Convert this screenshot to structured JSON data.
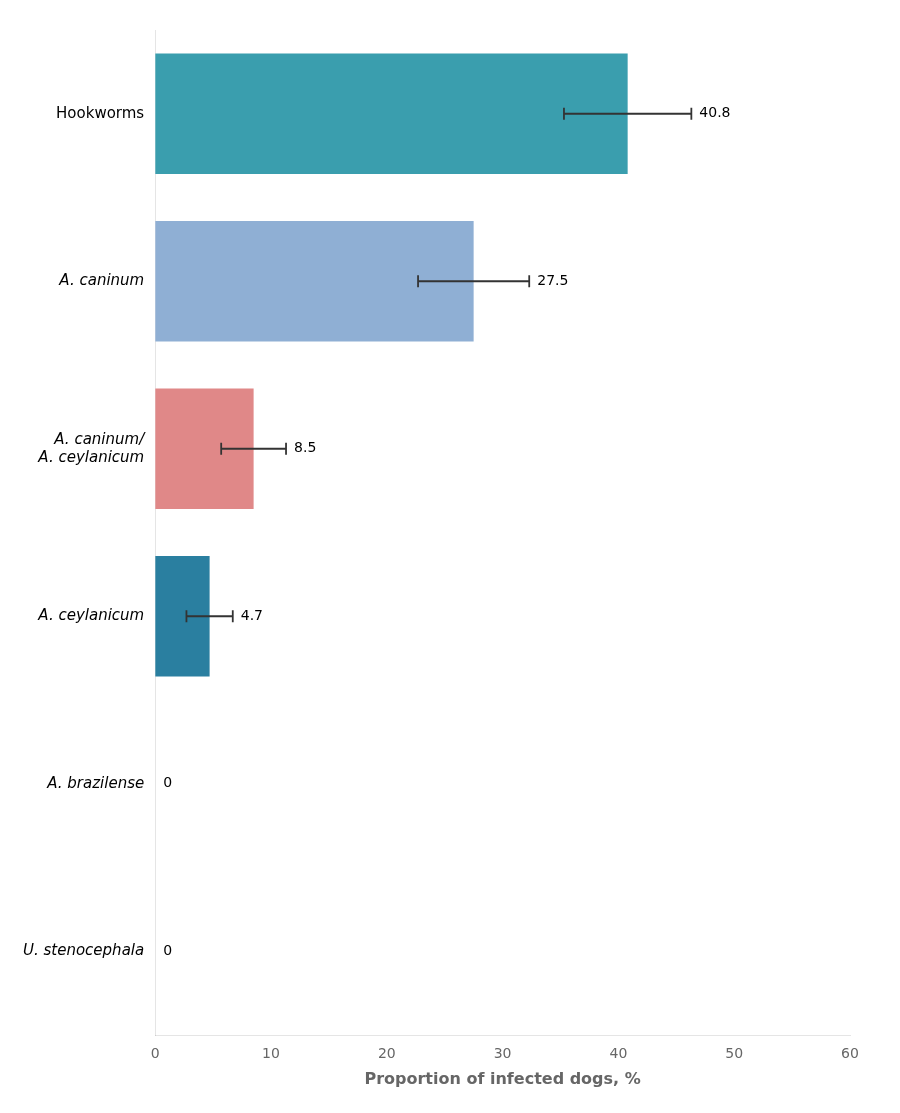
{
  "chart_data": {
    "type": "bar",
    "orientation": "horizontal",
    "categories": [
      "Hookworms",
      "A. caninum",
      "A. caninum/\nA. ceylanicum",
      "A. ceylanicum",
      "A. brazilense",
      "U. stenocephala"
    ],
    "values": [
      40.8,
      27.5,
      8.5,
      4.7,
      0,
      0
    ],
    "errors_low": [
      5.5,
      4.8,
      2.8,
      2.0,
      0,
      0
    ],
    "errors_high": [
      5.5,
      4.8,
      2.8,
      2.0,
      0,
      0
    ],
    "colors": [
      "#3a9eae",
      "#8fafd4",
      "#e08888",
      "#2a7fa0",
      "#ffffff",
      "#ffffff"
    ],
    "xlabel": "Proportion of infected dogs, %",
    "xlim": [
      0,
      60
    ],
    "xticks": [
      0,
      10,
      20,
      30,
      40,
      50,
      60
    ],
    "grid": false,
    "data_labels": true
  }
}
